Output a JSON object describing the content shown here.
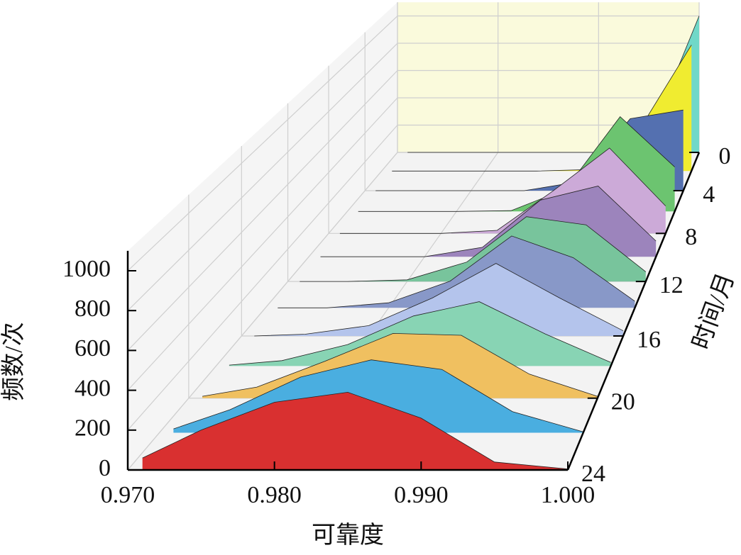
{
  "chart_data": {
    "type": "waterfall",
    "xlabel": "可靠度",
    "ylabel": "时间/月",
    "zlabel": "频数/次",
    "xlim": [
      0.97,
      1.0
    ],
    "xticks": [
      {
        "value": 0.97,
        "label": "0.970"
      },
      {
        "value": 0.98,
        "label": "0.980"
      },
      {
        "value": 0.99,
        "label": "0.990"
      },
      {
        "value": 1.0,
        "label": "1.000"
      }
    ],
    "ylim": [
      0,
      24
    ],
    "yticks": [
      0,
      4,
      8,
      12,
      16,
      20,
      24
    ],
    "zlim": [
      0,
      1100
    ],
    "zticks": [
      0,
      200,
      400,
      600,
      800,
      1000
    ],
    "grid": true,
    "x": [
      0.971,
      0.975,
      0.98,
      0.985,
      0.99,
      0.995,
      1.0
    ],
    "series": [
      {
        "y": 0,
        "color": "#70d8c8",
        "values": [
          0,
          0,
          0,
          0,
          0,
          100,
          1000
        ]
      },
      {
        "y": 2,
        "color": "#f0ec30",
        "values": [
          0,
          0,
          0,
          0,
          10,
          300,
          900
        ]
      },
      {
        "y": 4,
        "color": "#5470b0",
        "values": [
          0,
          0,
          0,
          0,
          60,
          500,
          560
        ]
      },
      {
        "y": 6,
        "color": "#6cc470",
        "values": [
          0,
          0,
          0,
          5,
          150,
          640,
          300
        ]
      },
      {
        "y": 8,
        "color": "#ccaad8",
        "values": [
          0,
          0,
          0,
          20,
          280,
          560,
          180
        ]
      },
      {
        "y": 10,
        "color": "#9c84bc",
        "values": [
          0,
          0,
          0,
          60,
          360,
          450,
          100
        ]
      },
      {
        "y": 12,
        "color": "#78c49c",
        "values": [
          0,
          0,
          10,
          120,
          400,
          350,
          60
        ]
      },
      {
        "y": 14,
        "color": "#8898c8",
        "values": [
          0,
          0,
          30,
          160,
          430,
          300,
          40
        ]
      },
      {
        "y": 16,
        "color": "#b4c4ec",
        "values": [
          0,
          10,
          60,
          220,
          420,
          220,
          30
        ]
      },
      {
        "y": 18,
        "color": "#88d4b4",
        "values": [
          5,
          30,
          120,
          280,
          360,
          180,
          20
        ]
      },
      {
        "y": 20,
        "color": "#f0c060",
        "values": [
          10,
          60,
          200,
          350,
          340,
          130,
          10
        ]
      },
      {
        "y": 22,
        "color": "#4aaee0",
        "values": [
          20,
          120,
          290,
          380,
          330,
          110,
          5
        ]
      },
      {
        "y": 24,
        "color": "#d93030",
        "values": [
          60,
          200,
          340,
          390,
          260,
          40,
          5
        ]
      }
    ]
  }
}
